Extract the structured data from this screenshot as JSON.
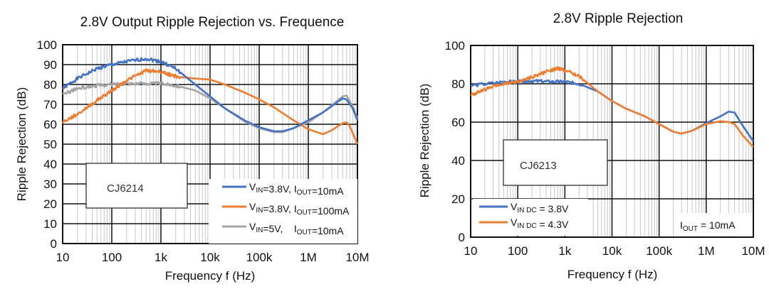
{
  "chart_data": [
    {
      "type": "line",
      "title": "2.8V Output Ripple Rejection vs. Frequence",
      "xlabel": "Frequency f (Hz)",
      "ylabel": "Ripple Rejection (dB)",
      "xscale": "log",
      "xlim": [
        10,
        10000000
      ],
      "ylim": [
        0,
        100
      ],
      "xticks": [
        "10",
        "100",
        "1k",
        "10k",
        "100k",
        "1M",
        "10M"
      ],
      "yticks": [
        "0",
        "10",
        "20",
        "30",
        "40",
        "50",
        "60",
        "70",
        "80",
        "90",
        "100"
      ],
      "ytick_values": [
        0,
        10,
        20,
        30,
        40,
        50,
        60,
        70,
        80,
        90,
        100
      ],
      "grid": true,
      "legend_placement": "bottom-right",
      "annotation": "CJ6214",
      "series": [
        {
          "name": "VIN=3.8V, IOUT=10mA",
          "legend": {
            "v": "V",
            "vsub": "IN",
            "vrest": "=3.8V, ",
            "i": "I",
            "isub": "OUT",
            "irest": "=10mA"
          },
          "color": "#4472c4",
          "points": [
            [
              10,
              78
            ],
            [
              20,
              83
            ],
            [
              50,
              88
            ],
            [
              100,
              90
            ],
            [
              200,
              91.5
            ],
            [
              500,
              93
            ],
            [
              1000,
              91.5
            ],
            [
              2000,
              88
            ],
            [
              5000,
              80
            ],
            [
              10000,
              74
            ],
            [
              20000,
              68
            ],
            [
              50000,
              62
            ],
            [
              100000,
              58.5
            ],
            [
              200000,
              56.5
            ],
            [
              300000,
              56.5
            ],
            [
              500000,
              58
            ],
            [
              1000000,
              62
            ],
            [
              2000000,
              66
            ],
            [
              5000000,
              73
            ],
            [
              6000000,
              72.5
            ],
            [
              8000000,
              68
            ],
            [
              10000000,
              62
            ]
          ]
        },
        {
          "name": "VIN=3.8V, IOUT=100mA",
          "legend": {
            "v": "V",
            "vsub": "IN",
            "vrest": "=3.8V, ",
            "i": "I",
            "isub": "OUT",
            "irest": "=100mA"
          },
          "color": "#ed7d31",
          "points": [
            [
              10,
              61
            ],
            [
              20,
              65
            ],
            [
              50,
              72
            ],
            [
              100,
              77
            ],
            [
              200,
              82
            ],
            [
              500,
              87
            ],
            [
              1000,
              86.5
            ],
            [
              2000,
              84
            ],
            [
              5000,
              83
            ],
            [
              10000,
              82.5
            ],
            [
              20000,
              80
            ],
            [
              50000,
              76
            ],
            [
              100000,
              72.5
            ],
            [
              200000,
              68.5
            ],
            [
              500000,
              62
            ],
            [
              1000000,
              57.5
            ],
            [
              2000000,
              55
            ],
            [
              3000000,
              57
            ],
            [
              5000000,
              60.5
            ],
            [
              6000000,
              61
            ],
            [
              7000000,
              59
            ],
            [
              10000000,
              50
            ]
          ]
        },
        {
          "name": "VIN=5V, IOUT=10mA",
          "legend": {
            "v": "V",
            "vsub": "IN",
            "vrest": "=5V,    ",
            "i": "I",
            "isub": "OUT",
            "irest": "=10mA"
          },
          "color": "#a5a5a5",
          "points": [
            [
              10,
              75
            ],
            [
              20,
              78
            ],
            [
              50,
              79.5
            ],
            [
              100,
              80
            ],
            [
              200,
              80.5
            ],
            [
              500,
              80.5
            ],
            [
              1000,
              80.5
            ],
            [
              2000,
              79.5
            ],
            [
              5000,
              77
            ],
            [
              10000,
              73
            ],
            [
              20000,
              68
            ],
            [
              50000,
              61.5
            ],
            [
              100000,
              58
            ],
            [
              200000,
              56
            ],
            [
              300000,
              56
            ],
            [
              500000,
              58
            ],
            [
              1000000,
              61
            ],
            [
              2000000,
              66
            ],
            [
              5000000,
              74
            ],
            [
              6000000,
              74.5
            ],
            [
              8000000,
              69
            ],
            [
              10000000,
              63
            ]
          ]
        }
      ]
    },
    {
      "type": "line",
      "title": "2.8V Ripple Rejection",
      "xlabel": "Frequency f (Hz)",
      "ylabel": "Ripple Rejection (dB)",
      "xscale": "log",
      "xlim": [
        10,
        10000000
      ],
      "ylim": [
        0,
        100
      ],
      "xticks": [
        "10",
        "100",
        "1k",
        "10k",
        "100k",
        "1M",
        "10M"
      ],
      "yticks": [
        "0",
        "20",
        "40",
        "60",
        "80",
        "100"
      ],
      "ytick_values": [
        0,
        20,
        40,
        60,
        80,
        100
      ],
      "grid": true,
      "legend_placement": "bottom-left",
      "annotation": "CJ6213",
      "condition": {
        "i": "I",
        "isub": "OUT",
        "irest": " = 10mA"
      },
      "series": [
        {
          "name": "VIN DC = 3.8V",
          "legend": {
            "v": "V",
            "vsub": "IN DC",
            "vrest": " = 3.8V"
          },
          "color": "#4472c4",
          "points": [
            [
              10,
              79
            ],
            [
              50,
              81
            ],
            [
              100,
              81
            ],
            [
              200,
              81.5
            ],
            [
              500,
              81
            ],
            [
              1000,
              81
            ],
            [
              2000,
              80
            ],
            [
              5000,
              76
            ],
            [
              10000,
              71
            ],
            [
              20000,
              67
            ],
            [
              50000,
              63
            ],
            [
              100000,
              59
            ],
            [
              200000,
              55
            ],
            [
              300000,
              54
            ],
            [
              500000,
              55.5
            ],
            [
              1000000,
              59.5
            ],
            [
              2000000,
              63
            ],
            [
              3000000,
              65.5
            ],
            [
              4000000,
              65
            ],
            [
              6000000,
              58
            ],
            [
              10000000,
              50
            ]
          ]
        },
        {
          "name": "VIN DC = 4.3V",
          "legend": {
            "v": "V",
            "vsub": "IN DC",
            "vrest": " = 4.3V"
          },
          "color": "#ed7d31",
          "points": [
            [
              10,
              74
            ],
            [
              20,
              77
            ],
            [
              50,
              80
            ],
            [
              100,
              81
            ],
            [
              200,
              83.5
            ],
            [
              500,
              87
            ],
            [
              700,
              88
            ],
            [
              1000,
              87
            ],
            [
              2000,
              84
            ],
            [
              5000,
              76
            ],
            [
              10000,
              71
            ],
            [
              20000,
              67
            ],
            [
              50000,
              63
            ],
            [
              100000,
              59
            ],
            [
              200000,
              55
            ],
            [
              300000,
              54
            ],
            [
              500000,
              55.5
            ],
            [
              1000000,
              59
            ],
            [
              2000000,
              60.5
            ],
            [
              3000000,
              60
            ],
            [
              4000000,
              59
            ],
            [
              6000000,
              53
            ],
            [
              10000000,
              47
            ]
          ]
        }
      ]
    }
  ]
}
